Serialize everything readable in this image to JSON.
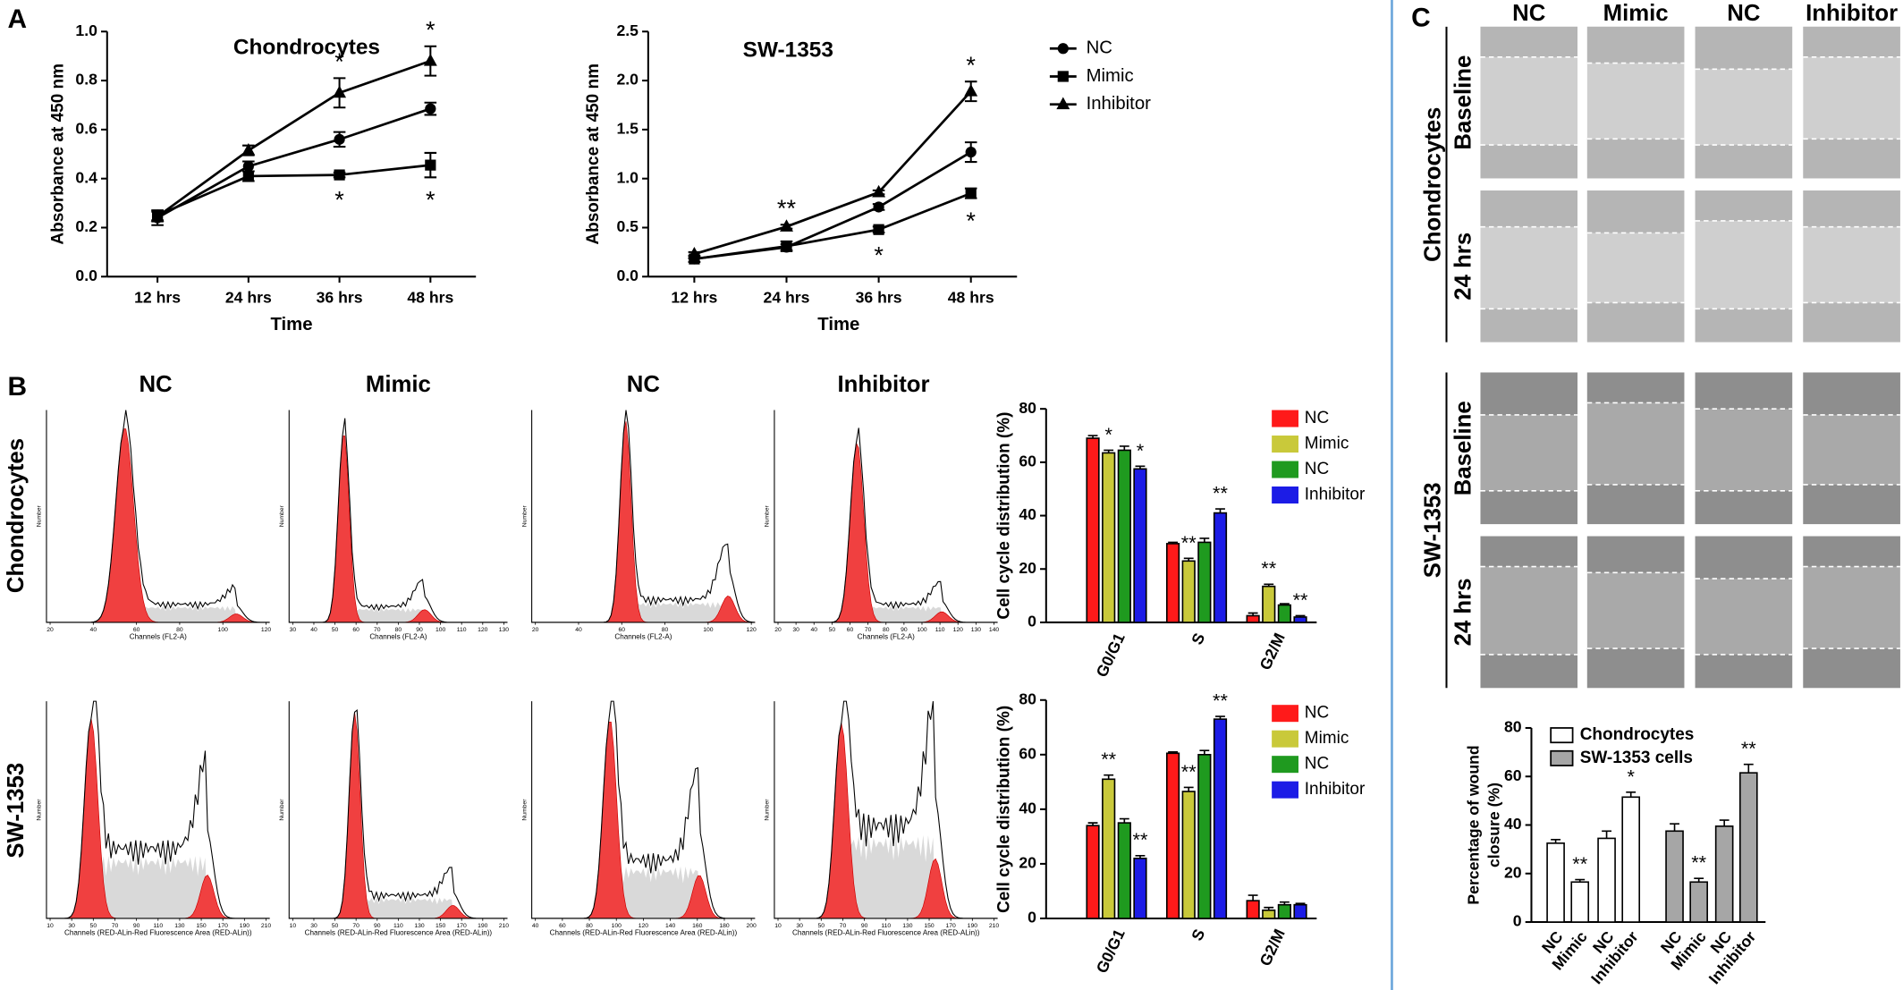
{
  "figure": {
    "panel_labels": [
      "A",
      "B",
      "C"
    ],
    "flow": {
      "column_titles": [
        "NC",
        "Mimic",
        "NC",
        "Inhibitor"
      ],
      "row_labels": [
        "Chondrocytes",
        "SW-1353"
      ],
      "y_label": "Number",
      "x_labels": [
        "Channels (FL2-A)",
        "Channels (RED-ALin-Red Fluorescence Area (RED-ALin))"
      ],
      "xticks": [
        [
          20,
          40,
          60,
          80,
          100,
          120
        ],
        [
          30,
          40,
          50,
          60,
          70,
          80,
          90,
          100,
          110,
          120,
          130
        ],
        [
          20,
          40,
          60,
          80,
          100,
          120
        ],
        [
          20,
          30,
          40,
          50,
          60,
          70,
          80,
          90,
          100,
          110,
          120,
          130,
          140
        ],
        [
          10,
          30,
          50,
          70,
          90,
          110,
          130,
          150,
          170,
          190,
          210
        ],
        [
          10,
          30,
          50,
          70,
          90,
          110,
          130,
          150,
          170,
          190,
          210
        ],
        [
          40,
          60,
          80,
          100,
          120,
          140,
          160,
          180,
          200
        ],
        [
          10,
          30,
          50,
          70,
          90,
          110,
          130,
          150,
          170,
          190,
          210
        ]
      ]
    },
    "wound": {
      "column_titles": [
        "NC",
        "Mimic",
        "NC",
        "Inhibitor"
      ],
      "groups": [
        {
          "label": "Chondrocytes",
          "rows": [
            "Baseline",
            "24 hrs"
          ]
        },
        {
          "label": "SW-1353",
          "rows": [
            "Baseline",
            "24 hrs"
          ]
        }
      ]
    }
  },
  "chart_data": [
    {
      "type": "line",
      "title": "Chondrocytes",
      "xlabel": "Time",
      "ylabel": "Absorbance at 450 nm",
      "categories": [
        "12 hrs",
        "24 hrs",
        "36 hrs",
        "48 hrs"
      ],
      "ylim": [
        0,
        1.0
      ],
      "yticks": [
        {
          "value": 0,
          "label": "0.0"
        },
        0.2,
        0.4,
        0.6,
        0.8,
        {
          "value": 1,
          "label": "1.0"
        }
      ],
      "series": [
        {
          "name": "NC",
          "marker": "circle",
          "color": "#000000",
          "values": [
            0.24,
            0.45,
            0.56,
            0.685
          ],
          "errors": [
            0.03,
            0.02,
            0.03,
            0.025
          ]
        },
        {
          "name": "Mimic",
          "marker": "square",
          "color": "#000000",
          "values": [
            0.25,
            0.41,
            0.415,
            0.455
          ],
          "errors": [
            0.02,
            0.02,
            0.01,
            0.05
          ]
        },
        {
          "name": "Inhibitor",
          "marker": "triangle",
          "color": "#000000",
          "values": [
            0.245,
            0.515,
            0.75,
            0.88
          ],
          "errors": [
            0.02,
            0.02,
            0.06,
            0.06
          ]
        }
      ],
      "annotations": [
        "*",
        "*",
        "*",
        "*"
      ]
    },
    {
      "type": "line",
      "title": "SW-1353",
      "xlabel": "Time",
      "ylabel": "Absorbance at 450 nm",
      "categories": [
        "12 hrs",
        "24 hrs",
        "36 hrs",
        "48 hrs"
      ],
      "ylim": [
        0,
        2.5
      ],
      "yticks": [
        {
          "value": 0,
          "label": "0.0"
        },
        0.5,
        {
          "value": 1,
          "label": "1.0"
        },
        1.5,
        {
          "value": 2,
          "label": "2.0"
        },
        2.5
      ],
      "legend": "right",
      "series": [
        {
          "name": "NC",
          "marker": "circle",
          "color": "#000000",
          "values": [
            0.18,
            0.3,
            0.71,
            1.27
          ],
          "errors": [
            0.03,
            0.03,
            0.03,
            0.1
          ]
        },
        {
          "name": "Mimic",
          "marker": "square",
          "color": "#000000",
          "values": [
            0.18,
            0.31,
            0.48,
            0.85
          ],
          "errors": [
            0.03,
            0.05,
            0.03,
            0.05
          ]
        },
        {
          "name": "Inhibitor",
          "marker": "triangle",
          "color": "#000000",
          "values": [
            0.23,
            0.51,
            0.86,
            1.89
          ],
          "errors": [
            0.02,
            0.02,
            0.02,
            0.1
          ]
        }
      ],
      "annotations": [
        "**",
        "*",
        "*",
        "*"
      ]
    },
    {
      "type": "bar",
      "ylabel": "Cell cycle distribution (%)",
      "categories": [
        "G0/G1",
        "S",
        "G2/M"
      ],
      "ylim": [
        0,
        80
      ],
      "yticks": [
        0,
        20,
        40,
        60,
        80
      ],
      "legend": "right",
      "series": [
        {
          "name": "NC",
          "color": "#ff1a1a",
          "values": [
            69,
            29.5,
            2.5
          ],
          "errors": [
            1,
            0.5,
            1
          ]
        },
        {
          "name": "Mimic",
          "color": "#c9c93a",
          "values": [
            63.5,
            23,
            13.5
          ],
          "errors": [
            1,
            1,
            0.8
          ]
        },
        {
          "name": "NC",
          "color": "#1f9a1f",
          "values": [
            64.5,
            30,
            6.5
          ],
          "errors": [
            1.5,
            1.5,
            0.5
          ]
        },
        {
          "name": "Inhibitor",
          "color": "#1c1ce6",
          "values": [
            57.5,
            41,
            2
          ],
          "errors": [
            1,
            1.5,
            0.5
          ]
        }
      ],
      "annotations": [
        "*",
        "*",
        "**",
        "**",
        "**",
        "**"
      ]
    },
    {
      "type": "bar",
      "ylabel": "Cell cycle distribution (%)",
      "categories": [
        "G0/G1",
        "S",
        "G2/M"
      ],
      "ylim": [
        0,
        80
      ],
      "yticks": [
        0,
        20,
        40,
        60,
        80
      ],
      "legend": "right",
      "series": [
        {
          "name": "NC",
          "color": "#ff1a1a",
          "values": [
            34,
            60.5,
            6.5
          ],
          "errors": [
            1,
            0.5,
            2
          ]
        },
        {
          "name": "Mimic",
          "color": "#c9c93a",
          "values": [
            51,
            46.5,
            3
          ],
          "errors": [
            1.5,
            1.5,
            1
          ]
        },
        {
          "name": "NC",
          "color": "#1f9a1f",
          "values": [
            35,
            60,
            5
          ],
          "errors": [
            1.5,
            1.5,
            1
          ]
        },
        {
          "name": "Inhibitor",
          "color": "#1c1ce6",
          "values": [
            22,
            73,
            5
          ],
          "errors": [
            1,
            1,
            0.5
          ]
        }
      ],
      "annotations": [
        "**",
        "**",
        "**",
        "**"
      ]
    },
    {
      "type": "bar",
      "ylabel": [
        "Percentage of wound",
        "closure (%)"
      ],
      "categories": [
        "NC",
        "Mimic",
        "NC",
        "Inhibitor",
        "NC",
        "Mimic",
        "NC",
        "Inhibitor"
      ],
      "ylim": [
        0,
        80
      ],
      "yticks": [
        0,
        20,
        40,
        60,
        80
      ],
      "legend": "top-left",
      "series": [
        {
          "name": "Chondrocytes",
          "color": "#ffffff",
          "values": [
            32.5,
            16.5,
            34.5,
            51.5,
            null,
            null,
            null,
            null
          ],
          "errors": [
            1.5,
            1,
            3,
            2,
            null,
            null,
            null,
            null
          ]
        },
        {
          "name": "SW-1353 cells",
          "color": "#a6a6a6",
          "values": [
            null,
            null,
            null,
            null,
            37.5,
            16.5,
            39.5,
            61.5
          ],
          "errors": [
            null,
            null,
            null,
            null,
            3,
            1.5,
            2.5,
            3.5
          ]
        }
      ],
      "annotations": [
        "**",
        "*",
        "**",
        "**"
      ]
    }
  ]
}
